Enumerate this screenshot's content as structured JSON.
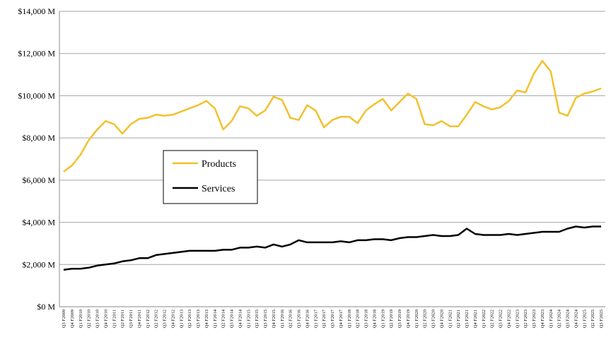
{
  "chart_data": {
    "type": "line",
    "title": "",
    "xlabel": "",
    "ylabel": "",
    "ylim": [
      0,
      14000
    ],
    "yticks": [
      0,
      2000,
      4000,
      6000,
      8000,
      10000,
      12000,
      14000
    ],
    "ytick_labels": [
      "$0 M",
      "$2,000 M",
      "$4,000 M",
      "$6,000 M",
      "$8,000 M",
      "$10,000 M",
      "$12,000 M",
      "$14,000 M"
    ],
    "grid": "horizontal",
    "legend_position": "center-left",
    "categories": [
      "Q3 F2009",
      "Q4 F2009",
      "Q1 F2010",
      "Q2 F2010",
      "Q3 F2010",
      "Q4 F2010",
      "Q1 F2011",
      "Q2 F2011",
      "Q3 F2011",
      "Q4 F2011",
      "Q1 F2012",
      "Q2 F2012",
      "Q3 F2012",
      "Q4 F2012",
      "Q1 F2013",
      "Q2 F2013",
      "Q3 F2013",
      "Q4 F2013",
      "Q1 F2014",
      "Q2 F2014",
      "Q3 F2014",
      "Q4 F2014",
      "Q1 F2015",
      "Q2 F2015",
      "Q3 F2015",
      "Q4 F2015",
      "Q1 F2016",
      "Q2 F2016",
      "Q3 F2016",
      "Q4 F2016",
      "Q1 F2017",
      "Q2 F2017",
      "Q3 F2017",
      "Q4 F2017",
      "Q1 F2018",
      "Q2 F2018",
      "Q3 F2018",
      "Q4 F2018",
      "Q1 F2019",
      "Q2 F2019",
      "Q3 F2019",
      "Q4 F2019",
      "Q1 F2020",
      "Q2 F2020",
      "Q3 F2020",
      "Q4 F2020",
      "Q1 F2021",
      "Q2 F2021",
      "Q3 F2021",
      "Q4 F2021",
      "Q1 F2022",
      "Q2 F2022",
      "Q3 F2022",
      "Q4 F2022",
      "Q1 F2023",
      "Q2 F2023",
      "Q3 F2023",
      "Q4 F2023",
      "Q1 F2024",
      "Q2 F2024",
      "Q3 F2024",
      "Q4 F2024",
      "Q1 F2025",
      "Q2 F2025",
      "Q3 F2025"
    ],
    "series": [
      {
        "name": "Products",
        "color": "#F2C12E",
        "values": [
          6400,
          6700,
          7200,
          7900,
          8400,
          8800,
          8650,
          8200,
          8650,
          8900,
          8950,
          9100,
          9050,
          9100,
          9250,
          9400,
          9550,
          9750,
          9400,
          8400,
          8800,
          9500,
          9400,
          9050,
          9300,
          9950,
          9800,
          8950,
          8850,
          9550,
          9300,
          8500,
          8850,
          9000,
          9000,
          8700,
          9300,
          9600,
          9850,
          9300,
          9700,
          10100,
          9850,
          8650,
          8600,
          8800,
          8550,
          8550,
          9100,
          9700,
          9500,
          9350,
          9450,
          9750,
          10250,
          10150,
          11050,
          11650,
          11150,
          9200,
          9050,
          9900,
          10100,
          10200,
          10350
        ]
      },
      {
        "name": "Services",
        "color": "#000000",
        "values": [
          1750,
          1800,
          1800,
          1850,
          1950,
          2000,
          2050,
          2150,
          2200,
          2300,
          2300,
          2450,
          2500,
          2550,
          2600,
          2650,
          2650,
          2650,
          2650,
          2700,
          2700,
          2800,
          2800,
          2850,
          2800,
          2950,
          2850,
          2950,
          3150,
          3050,
          3050,
          3050,
          3050,
          3100,
          3050,
          3150,
          3150,
          3200,
          3200,
          3150,
          3250,
          3300,
          3300,
          3350,
          3400,
          3350,
          3350,
          3400,
          3700,
          3450,
          3400,
          3400,
          3400,
          3450,
          3400,
          3450,
          3500,
          3550,
          3550,
          3550,
          3700,
          3800,
          3750,
          3800,
          3800
        ]
      }
    ]
  }
}
